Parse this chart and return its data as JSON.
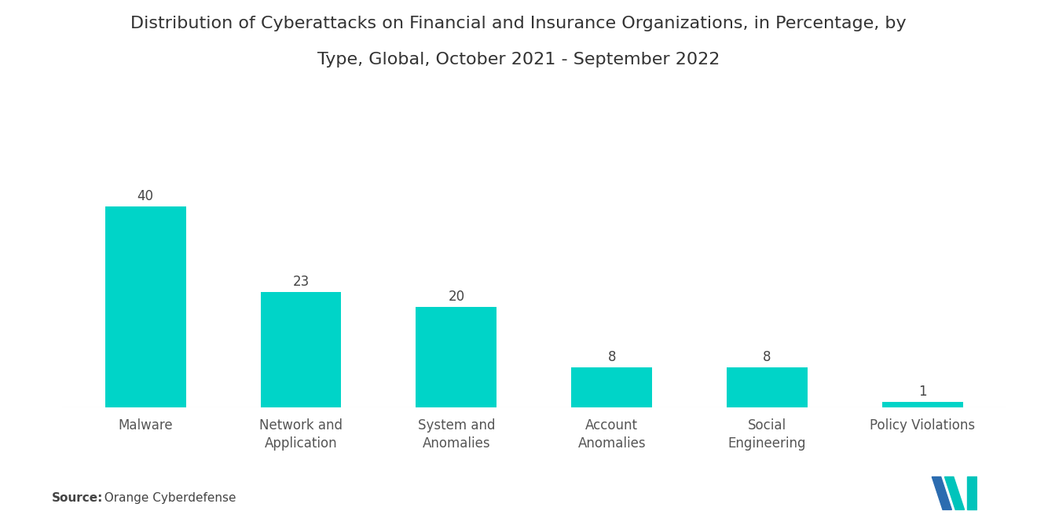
{
  "title_line1": "Distribution of Cyberattacks on Financial and Insurance Organizations, in Percentage, by",
  "title_line2": "Type, Global, October 2021 - September 2022",
  "categories": [
    "Malware",
    "Network and\nApplication",
    "System and\nAnomalies",
    "Account\nAnomalies",
    "Social\nEngineering",
    "Policy Violations"
  ],
  "values": [
    40,
    23,
    20,
    8,
    8,
    1
  ],
  "bar_color": "#00D4C8",
  "background_color": "#ffffff",
  "title_fontsize": 16,
  "label_fontsize": 12,
  "value_fontsize": 12,
  "source_bold": "Source:",
  "source_normal": "  Orange Cyberdefense",
  "ylim": [
    0,
    52
  ],
  "bar_width": 0.52,
  "logo_color_dark": "#2B6CB0",
  "logo_color_teal": "#00C4BB"
}
